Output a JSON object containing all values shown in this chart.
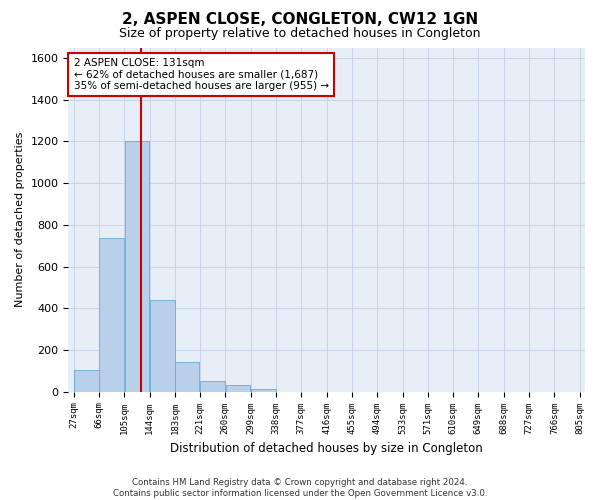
{
  "title": "2, ASPEN CLOSE, CONGLETON, CW12 1GN",
  "subtitle": "Size of property relative to detached houses in Congleton",
  "xlabel": "Distribution of detached houses by size in Congleton",
  "ylabel": "Number of detached properties",
  "bin_edges": [
    27,
    66,
    105,
    144,
    183,
    221,
    260,
    299,
    338,
    377,
    416,
    455,
    494,
    533,
    571,
    610,
    649,
    688,
    727,
    766,
    805
  ],
  "bar_heights": [
    105,
    735,
    1200,
    440,
    140,
    50,
    30,
    15,
    0,
    0,
    0,
    0,
    0,
    0,
    0,
    0,
    0,
    0,
    0,
    0
  ],
  "bar_color": "#b8d0ea",
  "bar_edge_color": "#6aaad4",
  "grid_color": "#c8d4e8",
  "background_color": "#e8eef8",
  "vline_x": 131,
  "vline_color": "#cc0000",
  "annotation_line1": "2 ASPEN CLOSE: 131sqm",
  "annotation_line2": "← 62% of detached houses are smaller (1,687)",
  "annotation_line3": "35% of semi-detached houses are larger (955) →",
  "annotation_box_color": "#ffffff",
  "annotation_box_edge": "#cc0000",
  "ylim": [
    0,
    1650
  ],
  "yticks": [
    0,
    200,
    400,
    600,
    800,
    1000,
    1200,
    1400,
    1600
  ],
  "footer_line1": "Contains HM Land Registry data © Crown copyright and database right 2024.",
  "footer_line2": "Contains public sector information licensed under the Open Government Licence v3.0."
}
